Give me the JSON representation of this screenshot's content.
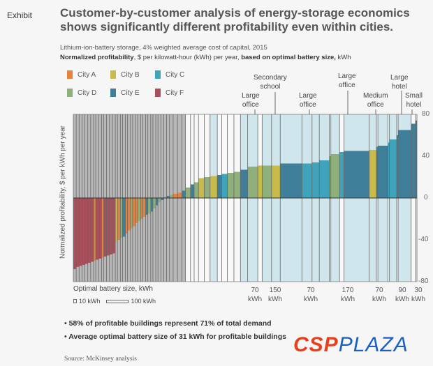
{
  "header": {
    "exhibit": "Exhibit",
    "title": "Customer-by-customer analysis of energy-storage economics shows significantly different profitability even within cities.",
    "subtitle": "Lithium-ion-battery storage, 4% weighted average cost of capital, 2015",
    "measure_bold1": "Normalized profitability",
    "measure_text1": ", $ per kilowatt-hour (kWh) per year, ",
    "measure_bold2": "based on optimal battery size,",
    "measure_text2": " kWh"
  },
  "chart_data": {
    "type": "bar",
    "title": "Customer-by-customer analysis of energy-storage economics shows significantly different profitability even within cities.",
    "ylabel": "Normalized profitability, $ per kWh per year",
    "xlabel": "Optimal battery size, kWh",
    "ylim": [
      -80,
      80
    ],
    "yticks": [
      "80",
      "40",
      "0",
      "-40",
      "-80"
    ],
    "legend": [
      {
        "name": "City A",
        "color": "#e8823a"
      },
      {
        "name": "City B",
        "color": "#c9bb4a"
      },
      {
        "name": "City C",
        "color": "#3fa3bb"
      },
      {
        "name": "City D",
        "color": "#8fb07a"
      },
      {
        "name": "City E",
        "color": "#3f7f99"
      },
      {
        "name": "City F",
        "color": "#a94f5c"
      }
    ],
    "bar_width_legend": {
      "small": "10 kWh",
      "large": "100 kWh"
    },
    "bars_note": "Bars ordered by profitability; width proportional to optimal battery size (kWh)",
    "bars": [
      {
        "city": "F",
        "size": 4,
        "value": -68
      },
      {
        "city": "F",
        "size": 4,
        "value": -66
      },
      {
        "city": "F",
        "size": 4,
        "value": -65
      },
      {
        "city": "F",
        "size": 4,
        "value": -64
      },
      {
        "city": "F",
        "size": 4,
        "value": -63
      },
      {
        "city": "F",
        "size": 4,
        "value": -62
      },
      {
        "city": "F",
        "size": 4,
        "value": -61
      },
      {
        "city": "A",
        "size": 3,
        "value": -60
      },
      {
        "city": "F",
        "size": 4,
        "value": -59
      },
      {
        "city": "F",
        "size": 4,
        "value": -58
      },
      {
        "city": "A",
        "size": 3,
        "value": -57
      },
      {
        "city": "F",
        "size": 4,
        "value": -56
      },
      {
        "city": "F",
        "size": 4,
        "value": -55
      },
      {
        "city": "F",
        "size": 4,
        "value": -54
      },
      {
        "city": "F",
        "size": 4,
        "value": -53
      },
      {
        "city": "B",
        "size": 3,
        "value": -42
      },
      {
        "city": "A",
        "size": 4,
        "value": -40
      },
      {
        "city": "D",
        "size": 3,
        "value": -38
      },
      {
        "city": "E",
        "size": 4,
        "value": -37
      },
      {
        "city": "A",
        "size": 3,
        "value": -34
      },
      {
        "city": "A",
        "size": 4,
        "value": -31
      },
      {
        "city": "D",
        "size": 3,
        "value": -29
      },
      {
        "city": "A",
        "size": 4,
        "value": -27
      },
      {
        "city": "A",
        "size": 3,
        "value": -24
      },
      {
        "city": "D",
        "size": 4,
        "value": -22
      },
      {
        "city": "A",
        "size": 3,
        "value": -20
      },
      {
        "city": "A",
        "size": 4,
        "value": -18
      },
      {
        "city": "E",
        "size": 3,
        "value": -16
      },
      {
        "city": "D",
        "size": 4,
        "value": -15
      },
      {
        "city": "E",
        "size": 3,
        "value": -13
      },
      {
        "city": "D",
        "size": 4,
        "value": -10
      },
      {
        "city": "E",
        "size": 3,
        "value": -7
      },
      {
        "city": "D",
        "size": 4,
        "value": -4
      },
      {
        "city": "E",
        "size": 4,
        "value": -2
      },
      {
        "city": "D",
        "size": 4,
        "value": 1
      },
      {
        "city": "E",
        "size": 4,
        "value": 2
      },
      {
        "city": "D",
        "size": 5,
        "value": 3
      },
      {
        "city": "A",
        "size": 6,
        "value": 4
      },
      {
        "city": "A",
        "size": 6,
        "value": 5
      },
      {
        "city": "E",
        "size": 5,
        "value": 7
      },
      {
        "city": "D",
        "size": 7,
        "value": 10
      },
      {
        "city": "E",
        "size": 5,
        "value": 13
      },
      {
        "city": "D",
        "size": 6,
        "value": 15
      },
      {
        "city": "B",
        "size": 8,
        "value": 19
      },
      {
        "city": "D",
        "size": 8,
        "value": 20
      },
      {
        "city": "B",
        "size": 10,
        "value": 21
      },
      {
        "city": "E",
        "size": 6,
        "value": 22
      },
      {
        "city": "C",
        "size": 8,
        "value": 23
      },
      {
        "city": "D",
        "size": 9,
        "value": 24
      },
      {
        "city": "D",
        "size": 9,
        "value": 25
      },
      {
        "city": "E",
        "size": 10,
        "value": 27
      },
      {
        "city": "D",
        "size": 14,
        "value": 30
      },
      {
        "city": "B",
        "size": 6,
        "value": 31
      },
      {
        "city": "D",
        "size": 13,
        "value": 31
      },
      {
        "city": "B",
        "size": 12,
        "value": 31
      },
      {
        "city": "E",
        "size": 30,
        "value": 33
      },
      {
        "city": "C",
        "size": 14,
        "value": 33
      },
      {
        "city": "C",
        "size": 10,
        "value": 34
      },
      {
        "city": "C",
        "size": 14,
        "value": 36
      },
      {
        "city": "D",
        "size": 2,
        "value": 40
      },
      {
        "city": "D",
        "size": 12,
        "value": 42
      },
      {
        "city": "C",
        "size": 6,
        "value": 44
      },
      {
        "city": "E",
        "size": 35,
        "value": 45
      },
      {
        "city": "B",
        "size": 10,
        "value": 46
      },
      {
        "city": "E",
        "size": 2,
        "value": 49
      },
      {
        "city": "E",
        "size": 14,
        "value": 50
      },
      {
        "city": "C",
        "size": 2,
        "value": 53
      },
      {
        "city": "C",
        "size": 10,
        "value": 56
      },
      {
        "city": "E",
        "size": 2,
        "value": 60
      },
      {
        "city": "E",
        "size": 18,
        "value": 65
      },
      {
        "city": "E",
        "size": 6,
        "value": 71
      },
      {
        "city": "E",
        "size": 2,
        "value": 74
      }
    ],
    "highlight_labels": [
      {
        "label": "Large office",
        "size": "70 kWh"
      },
      {
        "label": "Secondary school",
        "size": "150 kWh"
      },
      {
        "label": "Large office",
        "size": "70 kWh"
      },
      {
        "label": "Large office",
        "size": "170 kWh"
      },
      {
        "label": "Medium office",
        "size": "70 kWh"
      },
      {
        "label": "Large hotel",
        "size": "90 kWh"
      },
      {
        "label": "Small hotel",
        "size": "30 kWh"
      }
    ]
  },
  "annotations": {
    "l1a": "Large",
    "l1b": "office",
    "l2a": "Secondary",
    "l2b": "school",
    "l3a": "Large",
    "l3b": "office",
    "l4a": "Large",
    "l4b": "office",
    "l5a": "Medium",
    "l5b": "office",
    "l6a": "Large",
    "l6b": "hotel",
    "l7a": "Small",
    "l7b": "hotel"
  },
  "sizes": {
    "s1": "70",
    "s2": "150",
    "s3": "70",
    "s4": "170",
    "s5": "70",
    "s6": "90",
    "s7": "30",
    "unit": "kWh"
  },
  "scale_legend": {
    "small": "10 kWh",
    "large": "100 kWh"
  },
  "bullets": [
    "• 58% of profitable buildings represent 71% of total demand",
    "• Average optimal battery size of 31 kWh for profitable buildings"
  ],
  "source": "Source: McKinsey analysis",
  "logo": {
    "part1": "CSP",
    "part2": "PLAZA"
  }
}
